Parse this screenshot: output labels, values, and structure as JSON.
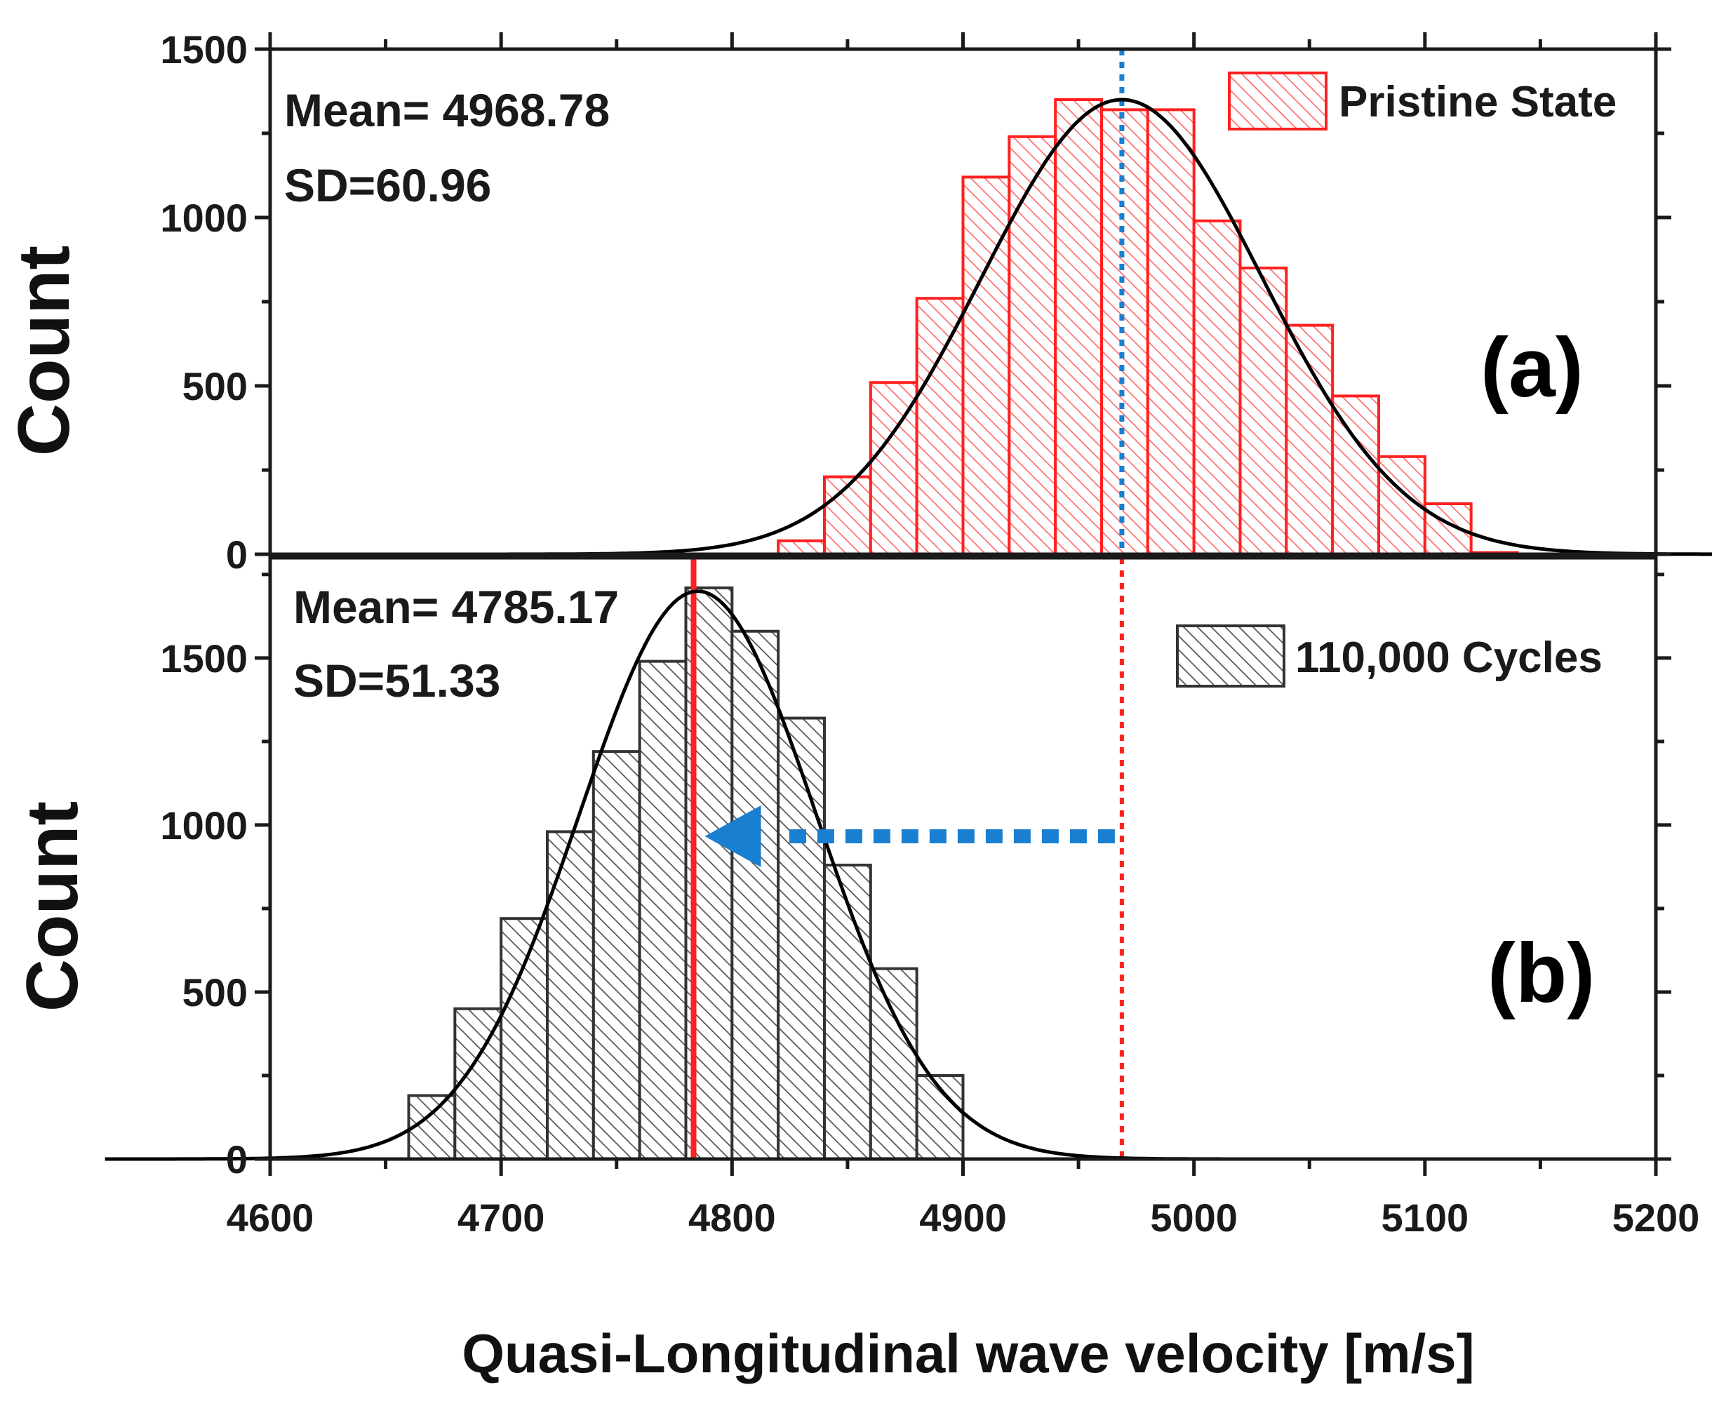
{
  "chart_data": {
    "type": "histogram",
    "xlabel": "Quasi-Longitudinal wave velocity [m/s]",
    "xlim": [
      4600,
      5200
    ],
    "x_ticks": [
      4600,
      4700,
      4800,
      4900,
      5000,
      5100,
      5200
    ],
    "bin_width": 20,
    "panels": [
      {
        "id": "a",
        "label": "(a)",
        "ylabel": "Count",
        "ylim": [
          0,
          1500
        ],
        "y_ticks": [
          0,
          500,
          1000,
          1500
        ],
        "legend": "Pristine State",
        "mean_text": "Mean= 4968.78",
        "sd_text": "SD=60.96",
        "mean": 4968.78,
        "sd": 60.96,
        "fit_peak": 1350,
        "color": "#ff2020",
        "bins_start": [
          4820,
          4840,
          4860,
          4880,
          4900,
          4920,
          4940,
          4960,
          4980,
          5000,
          5020,
          5040,
          5060,
          5080,
          5100,
          5120
        ],
        "counts": [
          40,
          230,
          510,
          760,
          1120,
          1240,
          1350,
          1320,
          1320,
          990,
          850,
          680,
          470,
          290,
          150,
          5
        ],
        "mean_marker_color": "#1a7fd0"
      },
      {
        "id": "b",
        "label": "(b)",
        "ylabel": "Count",
        "ylim": [
          0,
          1800
        ],
        "y_ticks": [
          0,
          500,
          1000,
          1500
        ],
        "legend": "110,000 Cycles",
        "mean_text": "Mean= 4785.17",
        "sd_text": "SD=51.33",
        "mean": 4785.17,
        "sd": 51.33,
        "fit_peak": 1700,
        "color": "#333333",
        "bins_start": [
          4660,
          4680,
          4700,
          4720,
          4740,
          4760,
          4780,
          4800,
          4820,
          4840,
          4860,
          4880
        ],
        "counts": [
          190,
          450,
          720,
          980,
          1220,
          1490,
          1710,
          1580,
          1320,
          880,
          570,
          250
        ],
        "mean_marker_color": "#ff2020",
        "previous_mean_color": "#ff2020",
        "shift_arrow_color": "#1a7fd0"
      }
    ]
  }
}
